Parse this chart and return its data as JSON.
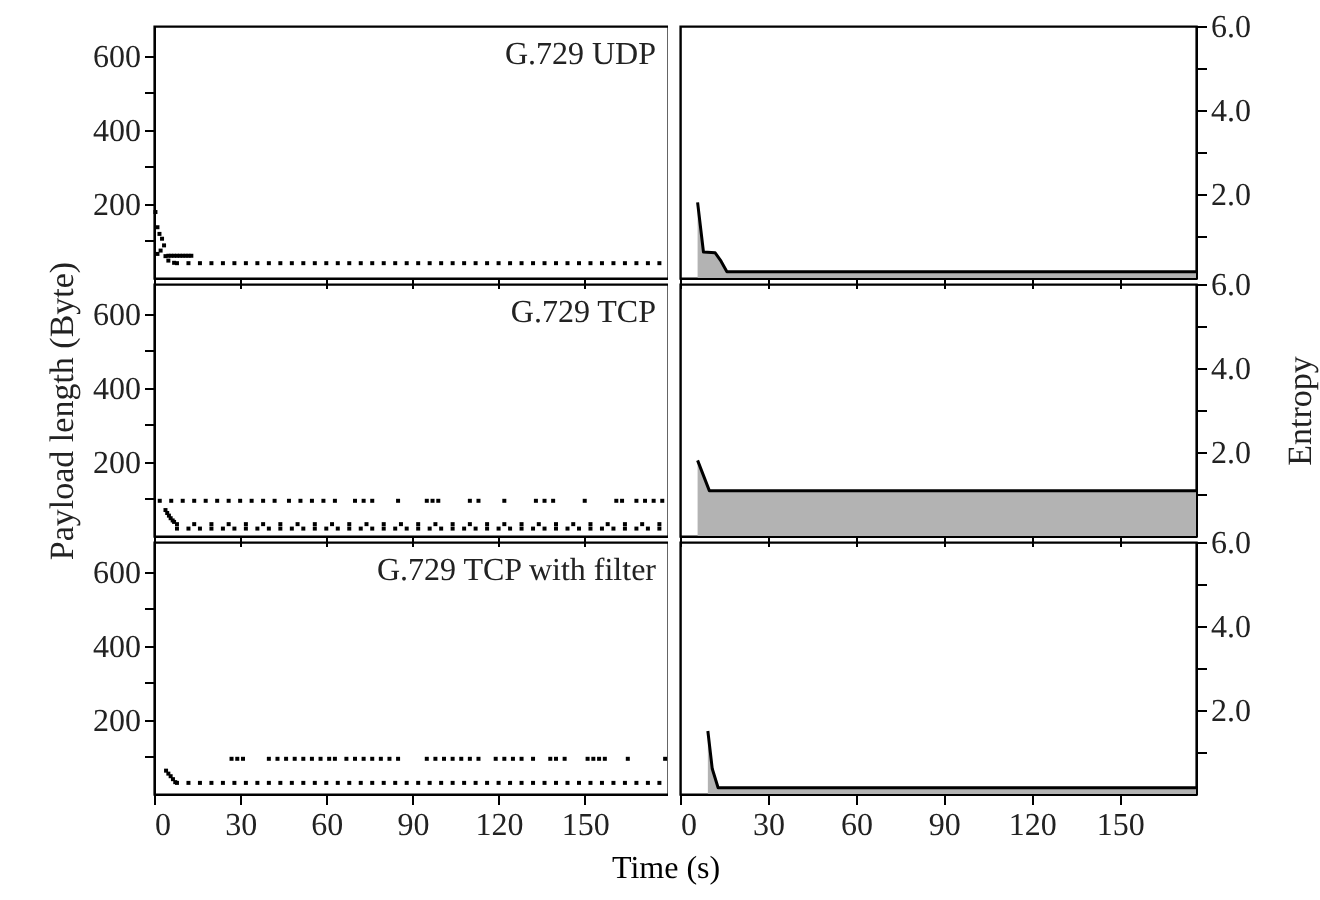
{
  "chart_data": [
    {
      "type": "scatter",
      "title": "G.729 UDP",
      "xlim": [
        0,
        179
      ],
      "xticks": [
        0,
        30,
        60,
        90,
        120,
        150
      ],
      "ylim": [
        0,
        680
      ],
      "yticks": [
        {
          "value": 100,
          "label": null
        },
        200,
        {
          "value": 300,
          "label": null
        },
        400,
        {
          "value": 500,
          "label": null
        },
        600
      ],
      "tick_labels": "y",
      "marker": "square",
      "grid": false,
      "series": [
        {
          "color": "#000000",
          "x": [
            0.5,
            1.2,
            1.9,
            2.8,
            3.5,
            2.3,
            1.2,
            4,
            5,
            7,
            5,
            6,
            7,
            8,
            9,
            10,
            11,
            12,
            13,
            8,
            12,
            16,
            20,
            24,
            28,
            32,
            36,
            40,
            44,
            48,
            52,
            56,
            60,
            64,
            68,
            72,
            76,
            80,
            84,
            88,
            92,
            96,
            100,
            104,
            108,
            112,
            116,
            120,
            124,
            128,
            132,
            136,
            140,
            144,
            148,
            152,
            156,
            160,
            164,
            168,
            172,
            176
          ],
          "values": [
            178,
            137,
            119,
            106,
            88,
            74,
            65,
            59,
            47,
            41,
            60,
            60,
            60,
            60,
            60,
            60,
            60,
            60,
            60,
            40,
            40,
            40,
            40,
            40,
            40,
            40,
            40,
            40,
            40,
            40,
            40,
            40,
            40,
            40,
            40,
            40,
            40,
            40,
            40,
            40,
            40,
            40,
            40,
            40,
            40,
            40,
            40,
            40,
            40,
            40,
            40,
            40,
            40,
            40,
            40,
            40,
            40,
            40,
            40,
            40,
            40,
            40
          ]
        }
      ]
    },
    {
      "type": "area",
      "xlim": [
        0,
        176
      ],
      "xticks": [
        0,
        30,
        60,
        90,
        120,
        150
      ],
      "ylim": [
        0,
        6
      ],
      "yticks": [
        {
          "value": 1,
          "label": null
        },
        {
          "value": 2,
          "label": "2.0"
        },
        {
          "value": 3,
          "label": null
        },
        {
          "value": 4,
          "label": "4.0"
        },
        {
          "value": 5,
          "label": null
        },
        {
          "value": 6,
          "label": "6.0"
        }
      ],
      "tick_labels": "y",
      "line_style": "solid",
      "grid": false,
      "series": [
        {
          "color": "#b3b3b3",
          "x": [
            6,
            8,
            12,
            14,
            16,
            176
          ],
          "values": [
            1.8,
            0.62,
            0.6,
            0.4,
            0.15,
            0.15
          ]
        }
      ]
    },
    {
      "type": "scatter",
      "title": "G.729 TCP",
      "ylabel": "Payload length (Byte)",
      "xlim": [
        0,
        179
      ],
      "xticks": [
        0,
        30,
        60,
        90,
        120,
        150
      ],
      "ylim": [
        0,
        680
      ],
      "yticks": [
        {
          "value": 100,
          "label": null
        },
        200,
        {
          "value": 300,
          "label": null
        },
        400,
        {
          "value": 500,
          "label": null
        },
        600
      ],
      "tick_labels": "y",
      "marker": "square",
      "grid": false,
      "series": [
        {
          "color": "#000000",
          "x": [
            4,
            4.6,
            5.2,
            5.8,
            6.5,
            7,
            2,
            6,
            10,
            14,
            18,
            22,
            26,
            30,
            34,
            38,
            42,
            47,
            51,
            55,
            59,
            63,
            70,
            73,
            76,
            85,
            95,
            97,
            99,
            110,
            113,
            122,
            133,
            136,
            139,
            150,
            161,
            163,
            168,
            171,
            174,
            177,
            8,
            12,
            16,
            20,
            24,
            28,
            32,
            36,
            40,
            44,
            48,
            52,
            56,
            60,
            64,
            68,
            72,
            76,
            80,
            84,
            88,
            92,
            96,
            100,
            104,
            108,
            112,
            116,
            120,
            124,
            128,
            132,
            136,
            140,
            144,
            148,
            152,
            156,
            160,
            164,
            168,
            172,
            176,
            8,
            14,
            20,
            26,
            32,
            38,
            44,
            50,
            56,
            62,
            68,
            74,
            80,
            86,
            92,
            98,
            104,
            110,
            116,
            122,
            128,
            134,
            140,
            146,
            152,
            158,
            164,
            170,
            176
          ],
          "values": [
            70,
            62,
            55,
            48,
            42,
            38,
            95,
            95,
            95,
            95,
            95,
            95,
            95,
            95,
            95,
            95,
            95,
            95,
            95,
            95,
            95,
            95,
            95,
            95,
            95,
            95,
            95,
            95,
            95,
            95,
            95,
            95,
            95,
            95,
            95,
            95,
            95,
            95,
            95,
            95,
            95,
            95,
            20,
            20,
            20,
            20,
            20,
            20,
            20,
            20,
            20,
            20,
            20,
            20,
            20,
            20,
            20,
            20,
            20,
            20,
            20,
            20,
            20,
            20,
            20,
            20,
            20,
            20,
            20,
            20,
            20,
            20,
            20,
            20,
            20,
            20,
            20,
            20,
            20,
            20,
            20,
            20,
            20,
            20,
            20,
            32,
            32,
            32,
            32,
            32,
            32,
            32,
            32,
            32,
            32,
            32,
            32,
            32,
            32,
            32,
            32,
            32,
            32,
            32,
            32,
            32,
            32,
            32,
            32,
            32,
            32,
            32,
            32,
            32
          ]
        }
      ]
    },
    {
      "type": "area",
      "ylabel": "Entropy",
      "xlim": [
        0,
        176
      ],
      "xticks": [
        0,
        30,
        60,
        90,
        120,
        150
      ],
      "ylim": [
        0,
        6
      ],
      "yticks": [
        {
          "value": 1,
          "label": null
        },
        {
          "value": 2,
          "label": "2.0"
        },
        {
          "value": 3,
          "label": null
        },
        {
          "value": 4,
          "label": "4.0"
        },
        {
          "value": 5,
          "label": null
        },
        {
          "value": 6,
          "label": "6.0"
        }
      ],
      "tick_labels": "y",
      "line_style": "solid",
      "grid": false,
      "series": [
        {
          "color": "#b3b3b3",
          "x": [
            6,
            10,
            176
          ],
          "values": [
            1.8,
            1.08,
            1.08
          ]
        }
      ]
    },
    {
      "type": "scatter",
      "title": "G.729 TCP with filter",
      "xlabel": "Time (s)",
      "xlim": [
        0,
        179
      ],
      "xticks": [
        0,
        30,
        60,
        90,
        120,
        150
      ],
      "ylim": [
        0,
        680
      ],
      "yticks": [
        {
          "value": 100,
          "label": null
        },
        200,
        {
          "value": 300,
          "label": null
        },
        400,
        {
          "value": 500,
          "label": null
        },
        600
      ],
      "marker": "square",
      "grid": false,
      "series": [
        {
          "color": "#000000",
          "x": [
            4.2,
            5,
            5.8,
            6.6,
            7.4,
            27,
            29,
            31,
            40,
            43,
            46,
            49,
            52,
            55,
            58,
            61,
            63,
            67,
            70,
            73,
            76,
            79,
            82,
            85,
            95,
            98,
            101,
            104,
            107,
            110,
            113,
            119,
            122,
            125,
            128,
            132,
            138,
            140,
            143,
            151,
            153,
            155,
            157,
            165,
            178,
            8,
            12,
            16,
            20,
            24,
            28,
            32,
            36,
            40,
            44,
            48,
            52,
            56,
            60,
            64,
            68,
            72,
            76,
            80,
            84,
            88,
            92,
            96,
            100,
            104,
            108,
            112,
            116,
            120,
            124,
            128,
            132,
            136,
            140,
            144,
            148,
            152,
            156,
            160,
            164,
            168,
            172,
            176
          ],
          "values": [
            63,
            55,
            48,
            40,
            32,
            95,
            95,
            95,
            95,
            95,
            95,
            95,
            95,
            95,
            95,
            95,
            95,
            95,
            95,
            95,
            95,
            95,
            95,
            95,
            95,
            95,
            95,
            95,
            95,
            95,
            95,
            95,
            95,
            95,
            95,
            95,
            95,
            95,
            95,
            95,
            95,
            95,
            95,
            95,
            95,
            30,
            30,
            30,
            30,
            30,
            30,
            30,
            30,
            30,
            30,
            30,
            30,
            30,
            30,
            30,
            30,
            30,
            30,
            30,
            30,
            30,
            30,
            30,
            30,
            30,
            30,
            30,
            30,
            30,
            30,
            30,
            30,
            30,
            30,
            30,
            30,
            30,
            30,
            30,
            30,
            30,
            30,
            30
          ]
        }
      ]
    },
    {
      "type": "area",
      "xlim": [
        0,
        176
      ],
      "xticks": [
        0,
        30,
        60,
        90,
        120,
        150
      ],
      "ylim": [
        0,
        6
      ],
      "yticks": [
        {
          "value": 1,
          "label": null
        },
        {
          "value": 2,
          "label": "2.0"
        },
        {
          "value": 3,
          "label": null
        },
        {
          "value": 4,
          "label": "4.0"
        },
        {
          "value": 5,
          "label": null
        },
        {
          "value": 6,
          "label": "6.0"
        }
      ],
      "line_style": "solid",
      "grid": false,
      "series": [
        {
          "color": "#b3b3b3",
          "x": [
            9.5,
            11,
            13,
            176
          ],
          "values": [
            1.5,
            0.6,
            0.15,
            0.15
          ]
        }
      ]
    }
  ]
}
